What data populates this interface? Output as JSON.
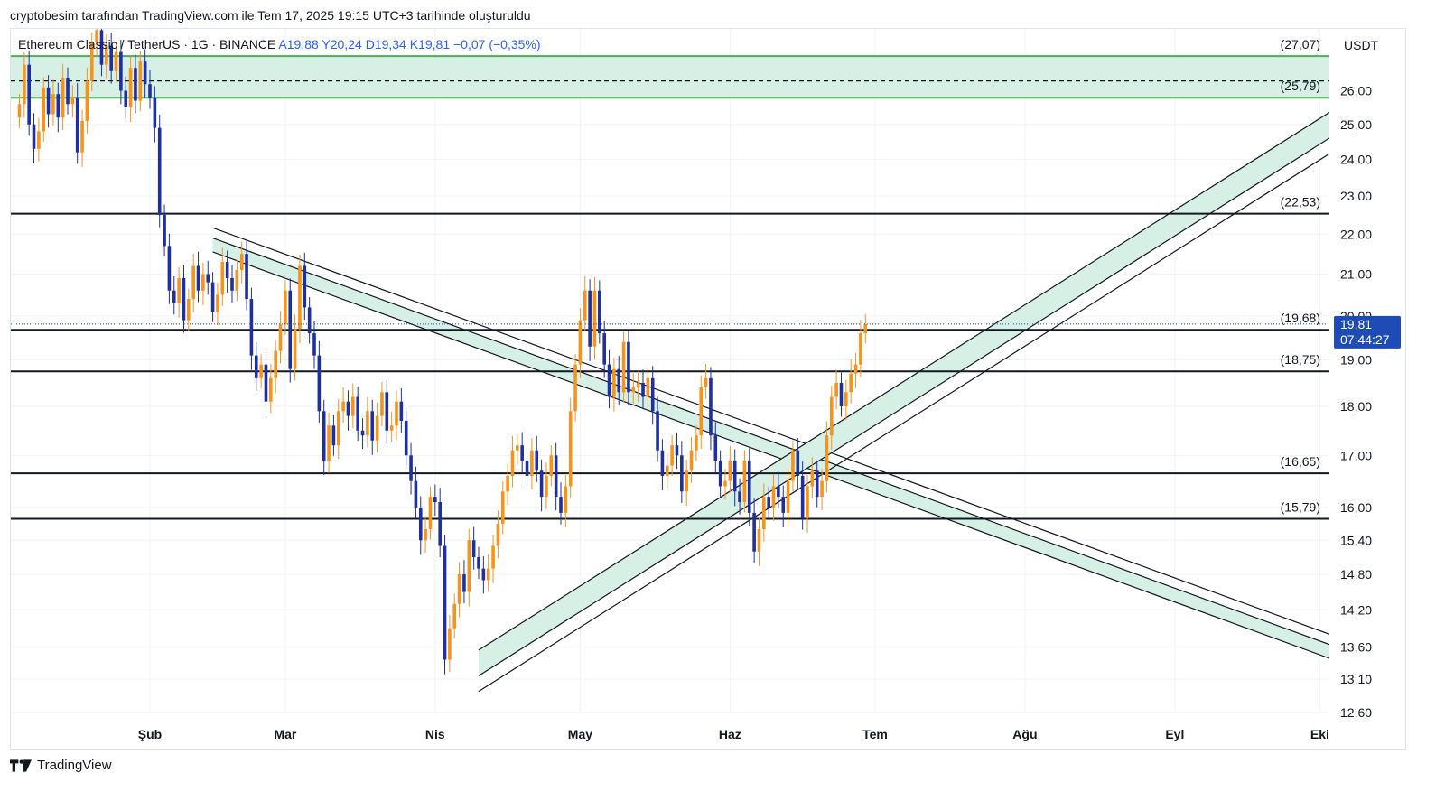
{
  "caption": "cryptobesim tarafından TradingView.com ile Tem 17, 2025 19:15 UTC+3 tarihinde oluşturuldu",
  "header": {
    "symbol": "Ethereum Classic / TetherUS · 1G · BINANCE",
    "open": "A19,88",
    "high": "Y20,24",
    "low": "D19,34",
    "close": "K19,81",
    "change": "−0,07 (−0,35%)"
  },
  "currency": "USDT",
  "brand": "TradingView",
  "colors": {
    "up": "#f7931a",
    "down": "#1e2fa3",
    "zone": "#d6f0e6",
    "zone_border": "#4caf50",
    "level": "#131722",
    "price_tag": "#1e4bb8"
  },
  "chart_data": {
    "type": "candlestick",
    "y_axis": {
      "ticks": [
        "26,00",
        "25,00",
        "24,00",
        "23,00",
        "22,00",
        "21,00",
        "20,00",
        "19,00",
        "18,00",
        "17,00",
        "16,00",
        "15,40",
        "14,80",
        "14,20",
        "13,60",
        "13,10",
        "12,60"
      ],
      "scale": "log"
    },
    "x_axis": {
      "ticks": [
        "Şub",
        "Mar",
        "Nis",
        "May",
        "Haz",
        "Tem",
        "Ağu",
        "Eyl",
        "Eki"
      ]
    },
    "levels": [
      {
        "label": "(27,07)",
        "value": 27.07
      },
      {
        "label": "(25,79)",
        "value": 25.79
      },
      {
        "label": "(22,53)",
        "value": 22.53
      },
      {
        "label": "(19,68)",
        "value": 19.68
      },
      {
        "label": "(18,75)",
        "value": 18.75
      },
      {
        "label": "(16,65)",
        "value": 16.65
      },
      {
        "label": "(15,79)",
        "value": 15.79
      }
    ],
    "supply_zone": {
      "top": 27.07,
      "bottom": 25.79,
      "mid": 26.3
    },
    "last_price": {
      "value": "19,81",
      "countdown": "07:44:27"
    },
    "trendlines": {
      "descending": {
        "start_date": "2025-02-14",
        "start_upper": 21.9,
        "start_lower": 21.55,
        "slope_per_day": -0.00205
      },
      "ascending": {
        "start_date": "2025-04-10",
        "start_upper": 13.55,
        "start_lower": 13.15,
        "slope_per_day": 0.00356
      }
    },
    "closes": [
      25.6,
      26.8,
      25.0,
      24.3,
      24.8,
      26.1,
      25.3,
      25.9,
      25.2,
      26.4,
      25.6,
      25.8,
      24.2,
      25.1,
      26.3,
      27.5,
      27.9,
      26.8,
      27.4,
      26.6,
      27.2,
      26.0,
      25.5,
      26.7,
      25.7,
      26.9,
      26.2,
      25.8,
      24.9,
      22.5,
      21.7,
      20.6,
      20.3,
      20.9,
      19.9,
      20.4,
      21.2,
      20.6,
      21.0,
      20.8,
      20.1,
      20.5,
      21.3,
      20.9,
      20.6,
      21.1,
      21.5,
      20.4,
      19.1,
      18.6,
      18.9,
      18.1,
      18.6,
      19.2,
      19.8,
      20.6,
      18.8,
      19.7,
      21.2,
      20.2,
      19.6,
      19.1,
      17.9,
      16.9,
      17.6,
      17.2,
      17.9,
      18.1,
      17.8,
      18.2,
      17.5,
      17.4,
      17.9,
      17.3,
      17.8,
      18.3,
      17.5,
      17.6,
      18.1,
      17.7,
      17.0,
      16.5,
      16.0,
      15.4,
      15.6,
      16.2,
      16.1,
      15.3,
      13.4,
      13.9,
      14.3,
      14.8,
      14.5,
      15.4,
      15.1,
      14.9,
      14.7,
      14.9,
      15.3,
      15.7,
      16.3,
      16.6,
      17.1,
      17.2,
      16.9,
      16.6,
      17.1,
      16.7,
      16.2,
      16.6,
      17.0,
      16.2,
      15.9,
      16.4,
      17.9,
      18.9,
      19.9,
      20.6,
      19.3,
      20.6,
      19.6,
      18.9,
      18.2,
      18.8,
      18.3,
      19.4,
      18.3,
      18.4,
      18.5,
      18.2,
      18.6,
      17.9,
      17.1,
      16.6,
      16.8,
      17.2,
      17.0,
      16.3,
      16.7,
      17.1,
      17.4,
      18.4,
      18.6,
      17.4,
      16.9,
      16.4,
      16.5,
      16.9,
      16.3,
      16.1,
      16.9,
      15.9,
      15.2,
      15.6,
      16.2,
      16.0,
      16.4,
      16.2,
      15.9,
      16.5,
      17.1,
      16.6,
      15.8,
      16.4,
      16.7,
      16.2,
      16.5,
      17.4,
      18.2,
      18.5,
      18.0,
      18.3,
      18.7,
      18.9,
      19.6,
      19.81
    ],
    "highs_extra": {
      "2025-02-04": "22.3"
    }
  }
}
